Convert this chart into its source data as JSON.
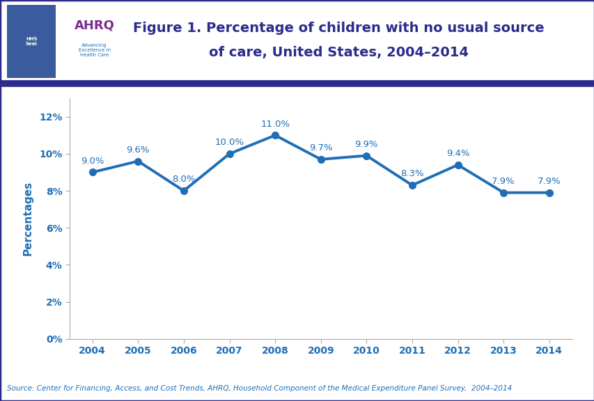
{
  "years": [
    2004,
    2005,
    2006,
    2007,
    2008,
    2009,
    2010,
    2011,
    2012,
    2013,
    2014
  ],
  "values": [
    9.0,
    9.6,
    8.0,
    10.0,
    11.0,
    9.7,
    9.9,
    8.3,
    9.4,
    7.9,
    7.9
  ],
  "labels": [
    "9.0%",
    "9.6%",
    "8.0%",
    "10.0%",
    "11.0%",
    "9.7%",
    "9.9%",
    "8.3%",
    "9.4%",
    "7.9%",
    "7.9%"
  ],
  "line_color": "#1F6EB5",
  "marker_color": "#1F6EB5",
  "title_line1": "Figure 1. Percentage of children with no usual source",
  "title_line2": "of care, United States, 2004–2014",
  "ylabel": "Percentages",
  "yticks": [
    0,
    2,
    4,
    6,
    8,
    10,
    12
  ],
  "ytick_labels": [
    "0%",
    "2%",
    "4%",
    "6%",
    "8%",
    "10%",
    "12%"
  ],
  "ylim": [
    0,
    13
  ],
  "xlim": [
    2003.5,
    2014.5
  ],
  "source_text": "Source: Center for Financing, Access, and Cost Trends, AHRQ, Household Component of the Medical Expenditure Panel Survey,  2004–2014",
  "title_color": "#2B2B8C",
  "axis_label_color": "#1F6EB5",
  "tick_label_color": "#1F6EB5",
  "annotation_color": "#1F6EB5",
  "header_bar_color": "#2B2B8C",
  "outer_border_color": "#2B2B8C",
  "background_color": "#FFFFFF",
  "figsize": [
    8.54,
    5.76
  ],
  "dpi": 100
}
